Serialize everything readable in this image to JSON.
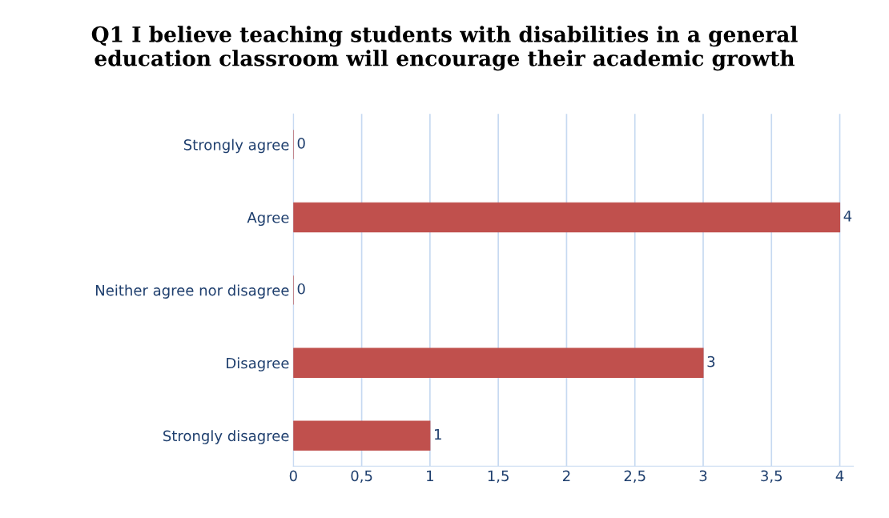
{
  "chart_data": {
    "type": "bar",
    "orientation": "horizontal",
    "title": "Q1 I believe teaching students with disabilities in a general\neducation classroom will encourage their academic growth",
    "categories": [
      "Strongly agree",
      "Agree",
      "Neither agree nor disagree",
      "Disagree",
      "Strongly disagree"
    ],
    "values": [
      0,
      4,
      0,
      3,
      1
    ],
    "color": "#c0504d",
    "xlim": [
      0,
      4.1
    ],
    "xticks": [
      0,
      {
        "value": 0.5,
        "label": "0,5"
      },
      1,
      {
        "value": 1.5,
        "label": "1,5"
      },
      2,
      {
        "value": 2.5,
        "label": "2,5"
      },
      3,
      {
        "value": 3.5,
        "label": "3,5"
      },
      4
    ],
    "grid": "x",
    "data_labels": true
  }
}
